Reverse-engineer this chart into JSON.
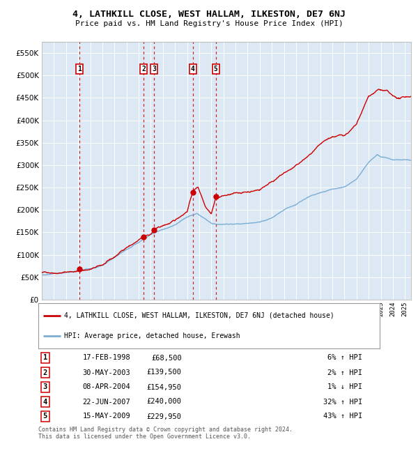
{
  "title": "4, LATHKILL CLOSE, WEST HALLAM, ILKESTON, DE7 6NJ",
  "subtitle": "Price paid vs. HM Land Registry's House Price Index (HPI)",
  "ylim": [
    0,
    575000
  ],
  "xlim_start": 1995.0,
  "xlim_end": 2025.5,
  "yticks": [
    0,
    50000,
    100000,
    150000,
    200000,
    250000,
    300000,
    350000,
    400000,
    450000,
    500000,
    550000
  ],
  "ytick_labels": [
    "£0",
    "£50K",
    "£100K",
    "£150K",
    "£200K",
    "£250K",
    "£300K",
    "£350K",
    "£400K",
    "£450K",
    "£500K",
    "£550K"
  ],
  "plot_bg_color": "#dce9f5",
  "grid_color": "#ffffff",
  "red_line_color": "#cc0000",
  "blue_line_color": "#7aadd4",
  "sale_marker_color": "#cc0000",
  "dashed_line_color": "#cc0000",
  "transactions": [
    {
      "num": 1,
      "date_str": "17-FEB-1998",
      "date_x": 1998.12,
      "price": 68500,
      "label": "1"
    },
    {
      "num": 2,
      "date_str": "30-MAY-2003",
      "date_x": 2003.41,
      "price": 139500,
      "label": "2"
    },
    {
      "num": 3,
      "date_str": "08-APR-2004",
      "date_x": 2004.27,
      "price": 154950,
      "label": "3"
    },
    {
      "num": 4,
      "date_str": "22-JUN-2007",
      "date_x": 2007.47,
      "price": 240000,
      "label": "4"
    },
    {
      "num": 5,
      "date_str": "15-MAY-2009",
      "date_x": 2009.37,
      "price": 229950,
      "label": "5"
    }
  ],
  "legend_red_label": "4, LATHKILL CLOSE, WEST HALLAM, ILKESTON, DE7 6NJ (detached house)",
  "legend_blue_label": "HPI: Average price, detached house, Erewash",
  "footer": "Contains HM Land Registry data © Crown copyright and database right 2024.\nThis data is licensed under the Open Government Licence v3.0.",
  "table_rows": [
    [
      "1",
      "17-FEB-1998",
      "£68,500",
      "6% ↑ HPI"
    ],
    [
      "2",
      "30-MAY-2003",
      "£139,500",
      "2% ↑ HPI"
    ],
    [
      "3",
      "08-APR-2004",
      "£154,950",
      "1% ↓ HPI"
    ],
    [
      "4",
      "22-JUN-2007",
      "£240,000",
      "32% ↑ HPI"
    ],
    [
      "5",
      "15-MAY-2009",
      "£229,950",
      "43% ↑ HPI"
    ]
  ]
}
